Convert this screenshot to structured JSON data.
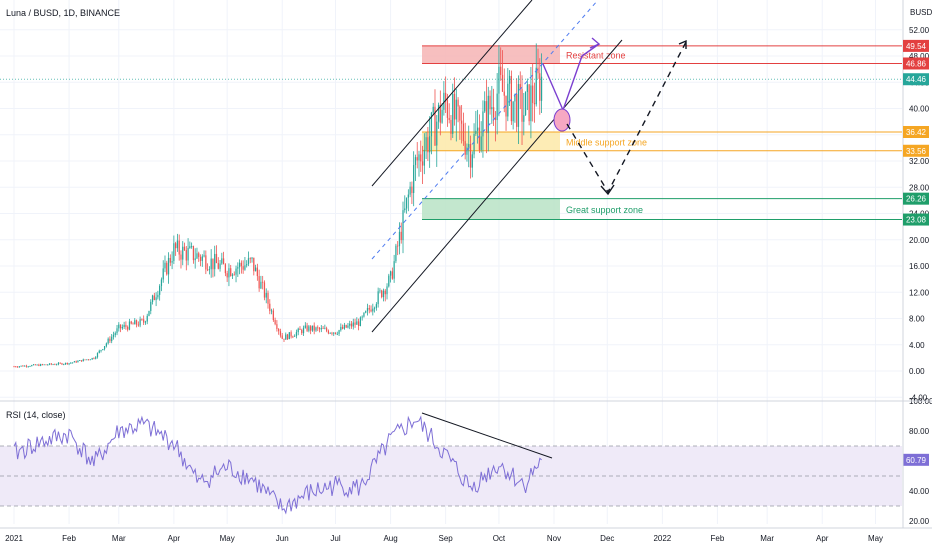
{
  "header": {
    "symbol_line": "Luna / BUSD, 1D, BINANCE",
    "currency": "BUSD"
  },
  "colors": {
    "up": "#26a69a",
    "down": "#ef5350",
    "resist_fill": "#f6b4b4",
    "resist_line": "#e34040",
    "mid_fill": "#fde9a8",
    "mid_line": "#f5a623",
    "great_fill": "#b9e3c5",
    "great_line": "#1f9e6a",
    "rsi_line": "#7e6fd6",
    "rsi_band": "#efeaf8",
    "arrow": "#7b3fd0"
  },
  "zones": {
    "resist_label": "Resistant zone",
    "mid_label": "Middle support zone",
    "great_label": "Great support zone"
  },
  "price_axis": {
    "ticks": [
      "52.00",
      "48.00",
      "44.00",
      "40.00",
      "36.00",
      "32.00",
      "28.00",
      "24.00",
      "20.00",
      "16.00",
      "12.00",
      "8.00",
      "4.00",
      "0.00",
      "-4.00"
    ],
    "badges": [
      {
        "label": "49.54",
        "kind": "resist"
      },
      {
        "label": "46.86",
        "kind": "resist"
      },
      {
        "label": "44.46",
        "kind": "last"
      },
      {
        "label": "36.42",
        "kind": "mid"
      },
      {
        "label": "33.56",
        "kind": "mid"
      },
      {
        "label": "26.26",
        "kind": "great"
      },
      {
        "label": "23.08",
        "kind": "great"
      }
    ]
  },
  "rsi": {
    "title": "RSI (14, close)",
    "ticks": [
      "100.00",
      "80.00",
      "60.00",
      "40.00",
      "20.00"
    ],
    "badge": "60.79"
  },
  "time_axis": {
    "labels": [
      "2021",
      "Feb",
      "Mar",
      "Apr",
      "May",
      "Jun",
      "Jul",
      "Aug",
      "Sep",
      "Oct",
      "Nov",
      "Dec",
      "2022",
      "Feb",
      "Mar",
      "Apr",
      "May"
    ]
  },
  "chart_data": [
    {
      "type": "candlestick",
      "title": "Luna / BUSD, 1D, BINANCE",
      "ylabel": "BUSD",
      "ylim": [
        -4,
        54
      ],
      "x": [
        "2021-01-01",
        "2021-01-15",
        "2021-02-01",
        "2021-02-15",
        "2021-03-01",
        "2021-03-15",
        "2021-04-01",
        "2021-04-15",
        "2021-05-01",
        "2021-05-15",
        "2021-06-01",
        "2021-06-15",
        "2021-07-01",
        "2021-07-15",
        "2021-08-01",
        "2021-08-15",
        "2021-09-01",
        "2021-09-15",
        "2021-10-01",
        "2021-10-15",
        "2021-10-25"
      ],
      "close": [
        0.7,
        0.9,
        1.2,
        2.0,
        6.5,
        7.5,
        18.5,
        17.5,
        15.5,
        16.5,
        5.0,
        6.5,
        6.0,
        7.5,
        14.0,
        31.5,
        41.0,
        34.0,
        43.0,
        39.5,
        44.46
      ],
      "last_price": 44.46,
      "zones": [
        {
          "name": "Resistant zone",
          "from": 46.86,
          "to": 49.54
        },
        {
          "name": "Middle support zone",
          "from": 33.56,
          "to": 36.42
        },
        {
          "name": "Great support zone",
          "from": 23.08,
          "to": 26.26
        }
      ]
    },
    {
      "type": "line",
      "title": "RSI (14, close)",
      "ylim": [
        20,
        100
      ],
      "x": [
        "2021-01-01",
        "2021-01-15",
        "2021-02-01",
        "2021-02-15",
        "2021-03-01",
        "2021-03-15",
        "2021-04-01",
        "2021-04-15",
        "2021-05-01",
        "2021-05-15",
        "2021-06-01",
        "2021-06-15",
        "2021-07-01",
        "2021-07-15",
        "2021-08-01",
        "2021-08-15",
        "2021-09-01",
        "2021-09-15",
        "2021-10-01",
        "2021-10-15",
        "2021-10-25"
      ],
      "values": [
        65,
        72,
        78,
        58,
        80,
        84,
        72,
        45,
        56,
        48,
        28,
        38,
        44,
        42,
        74,
        88,
        64,
        42,
        58,
        44,
        60.79
      ]
    }
  ]
}
